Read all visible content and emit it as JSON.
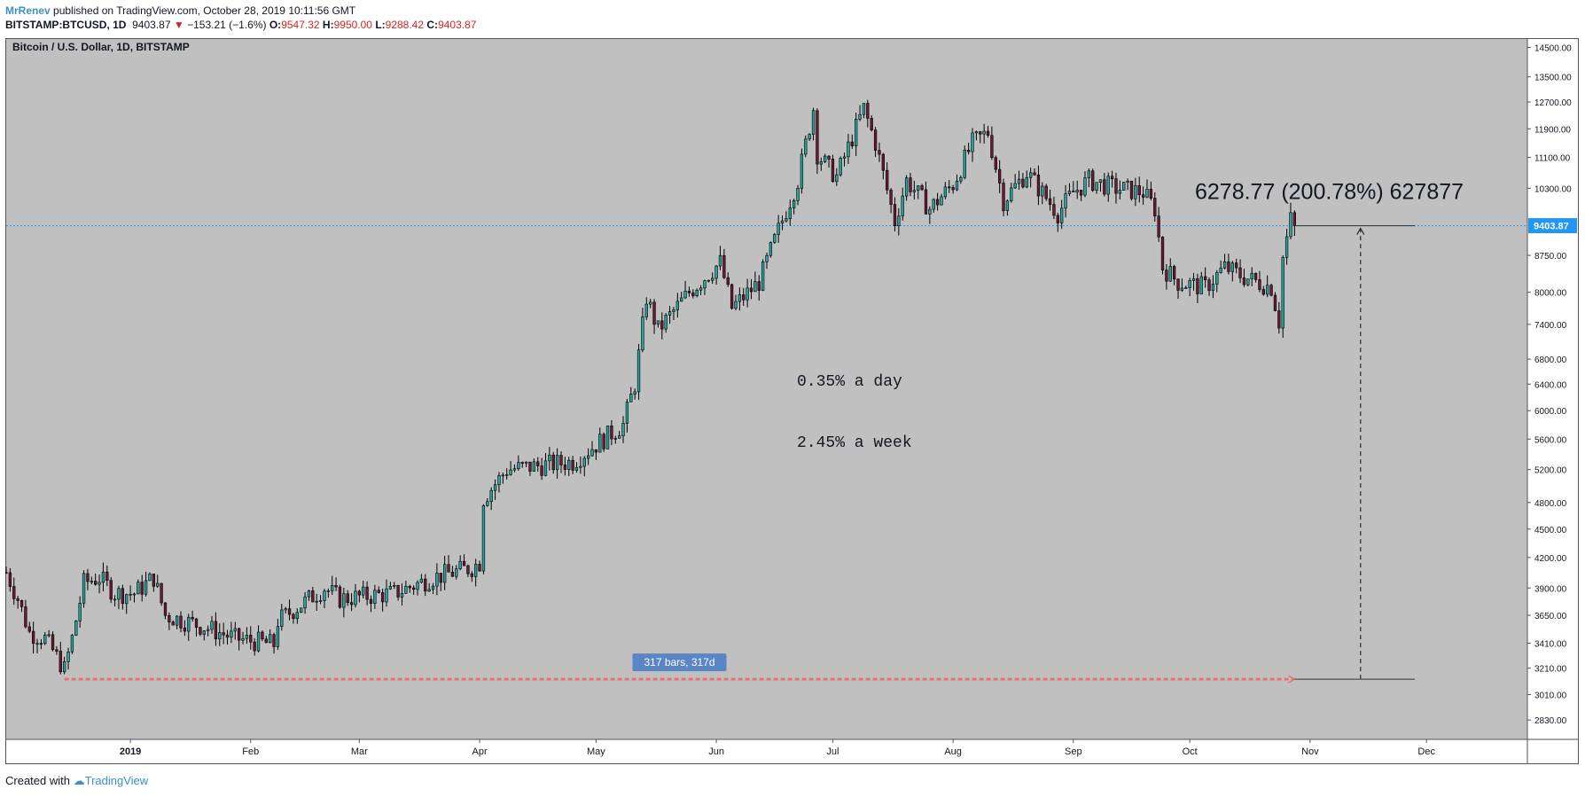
{
  "header": {
    "author": "MrRenev",
    "published_text": "published on TradingView.com, October 28, 2019 10:11:56 GMT",
    "symbol": "BITSTAMP:BTCUSD, 1D",
    "last": "9403.87",
    "arrow": "▼",
    "change": "−153.21 (−1.6%)",
    "o_label": "O:",
    "o_value": "9547.32",
    "h_label": "H:",
    "h_value": "9950.00",
    "l_label": "L:",
    "l_value": "9288.42",
    "c_label": "C:",
    "c_value": "9403.87"
  },
  "footer": {
    "created_with": "Created with",
    "brand": "TradingView"
  },
  "colors": {
    "background": "#c0c0c0",
    "up_body": "#26a69a",
    "down_body": "#6b1a33",
    "wick": "#000000",
    "price_line": "#2196f3",
    "range_line": "#e57373",
    "bars_label_bg": "#5b86c5"
  },
  "chart_data": {
    "type": "candlestick",
    "title": "Bitcoin / U.S. Dollar, 1D, BITSTAMP",
    "xlabel": "",
    "ylabel": "",
    "y_scale": "log",
    "ylim": [
      2700,
      14800
    ],
    "y_ticks": [
      "14500.00",
      "13500.00",
      "12700.00",
      "11900.00",
      "11100.00",
      "10300.00",
      "9403.87",
      "8750.00",
      "8000.00",
      "7400.00",
      "6800.00",
      "6400.00",
      "6000.00",
      "5600.00",
      "5200.00",
      "4800.00",
      "4500.00",
      "4200.00",
      "3900.00",
      "3650.00",
      "3410.00",
      "3210.00",
      "3010.00",
      "2830.00"
    ],
    "x_ticks": [
      {
        "label": "2019",
        "date": "2019-01-01"
      },
      {
        "label": "Feb",
        "date": "2019-02-01"
      },
      {
        "label": "Mar",
        "date": "2019-03-01"
      },
      {
        "label": "Apr",
        "date": "2019-04-01"
      },
      {
        "label": "May",
        "date": "2019-05-01"
      },
      {
        "label": "Jun",
        "date": "2019-06-01"
      },
      {
        "label": "Jul",
        "date": "2019-07-01"
      },
      {
        "label": "Aug",
        "date": "2019-08-01"
      },
      {
        "label": "Sep",
        "date": "2019-09-01"
      },
      {
        "label": "Oct",
        "date": "2019-10-01"
      },
      {
        "label": "Nov",
        "date": "2019-11-01"
      },
      {
        "label": "Dec",
        "date": "2019-12-01"
      }
    ],
    "x_range": [
      "2018-11-30",
      "2019-12-27"
    ],
    "close_anchors": [
      [
        "2018-11-30",
        4050
      ],
      [
        "2018-12-03",
        3800
      ],
      [
        "2018-12-06",
        3500
      ],
      [
        "2018-12-10",
        3450
      ],
      [
        "2018-12-13",
        3300
      ],
      [
        "2018-12-15",
        3200
      ],
      [
        "2018-12-17",
        3450
      ],
      [
        "2018-12-20",
        3950
      ],
      [
        "2018-12-24",
        4000
      ],
      [
        "2018-12-28",
        3850
      ],
      [
        "2019-01-02",
        3850
      ],
      [
        "2019-01-07",
        4000
      ],
      [
        "2019-01-10",
        3650
      ],
      [
        "2019-01-20",
        3550
      ],
      [
        "2019-01-28",
        3450
      ],
      [
        "2019-02-07",
        3400
      ],
      [
        "2019-02-08",
        3600
      ],
      [
        "2019-02-20",
        3900
      ],
      [
        "2019-02-24",
        3800
      ],
      [
        "2019-03-10",
        3850
      ],
      [
        "2019-03-20",
        4000
      ],
      [
        "2019-03-30",
        4100
      ],
      [
        "2019-04-01",
        4150
      ],
      [
        "2019-04-02",
        4850
      ],
      [
        "2019-04-08",
        5200
      ],
      [
        "2019-04-25",
        5300
      ],
      [
        "2019-05-08",
        5800
      ],
      [
        "2019-05-11",
        6400
      ],
      [
        "2019-05-14",
        7900
      ],
      [
        "2019-05-17",
        7300
      ],
      [
        "2019-05-25",
        8000
      ],
      [
        "2019-06-02",
        8600
      ],
      [
        "2019-06-05",
        7700
      ],
      [
        "2019-06-12",
        8200
      ],
      [
        "2019-06-17",
        9300
      ],
      [
        "2019-06-22",
        10500
      ],
      [
        "2019-06-26",
        12500
      ],
      [
        "2019-06-27",
        11200
      ],
      [
        "2019-06-30",
        10800
      ],
      [
        "2019-07-02",
        10600
      ],
      [
        "2019-07-09",
        12500
      ],
      [
        "2019-07-12",
        11500
      ],
      [
        "2019-07-17",
        9500
      ],
      [
        "2019-07-20",
        10500
      ],
      [
        "2019-07-26",
        9800
      ],
      [
        "2019-08-01",
        10400
      ],
      [
        "2019-08-06",
        11500
      ],
      [
        "2019-08-10",
        11800
      ],
      [
        "2019-08-14",
        10000
      ],
      [
        "2019-08-20",
        10700
      ],
      [
        "2019-08-28",
        9700
      ],
      [
        "2019-09-01",
        10200
      ],
      [
        "2019-09-05",
        10500
      ],
      [
        "2019-09-12",
        10300
      ],
      [
        "2019-09-19",
        10200
      ],
      [
        "2019-09-22",
        9800
      ],
      [
        "2019-09-24",
        8500
      ],
      [
        "2019-09-28",
        8200
      ],
      [
        "2019-10-05",
        8100
      ],
      [
        "2019-10-10",
        8500
      ],
      [
        "2019-10-15",
        8300
      ],
      [
        "2019-10-22",
        8100
      ],
      [
        "2019-10-24",
        7450
      ],
      [
        "2019-10-25",
        8700
      ],
      [
        "2019-10-27",
        9550
      ],
      [
        "2019-10-28",
        9403.87
      ]
    ],
    "last_price": 9403.87,
    "last_price_label": "9403.87",
    "annotations": {
      "measure_text": "6278.77 (200.78%) 627877",
      "bars_label": "317 bars, 317d",
      "note_day": "0.35% a day",
      "note_week": "2.45% a week",
      "range_start_date": "2018-12-15",
      "range_end_date": "2019-10-28",
      "range_price": 3125,
      "vertical_line_date": "2019-11-14",
      "horizontal_from_date": "2019-10-28",
      "horizontal_to_date": "2019-11-28"
    }
  }
}
